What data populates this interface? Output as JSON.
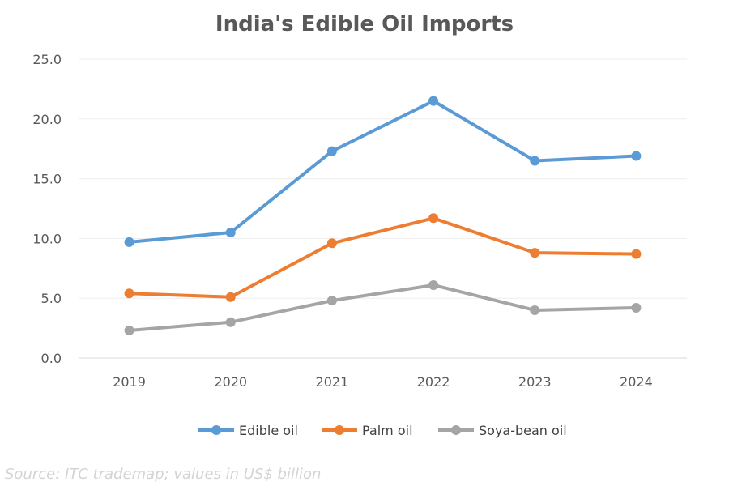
{
  "chart_data": {
    "type": "line",
    "title": "India's Edible Oil Imports",
    "xlabel": "",
    "ylabel": "",
    "categories": [
      "2019",
      "2020",
      "2021",
      "2022",
      "2023",
      "2024"
    ],
    "ylim": [
      0,
      25
    ],
    "yticks": [
      0,
      5,
      10,
      15,
      20,
      25
    ],
    "ytick_labels": [
      "0.0",
      "5.0",
      "10.0",
      "15.0",
      "20.0",
      "25.0"
    ],
    "grid": true,
    "legend_position": "bottom",
    "series": [
      {
        "name": "Edible oil",
        "color": "#5b9bd5",
        "values": [
          9.7,
          10.5,
          17.3,
          21.5,
          16.5,
          16.9
        ]
      },
      {
        "name": "Palm oil",
        "color": "#ed7d31",
        "values": [
          5.4,
          5.1,
          9.6,
          11.7,
          8.8,
          8.7
        ]
      },
      {
        "name": "Soya-bean oil",
        "color": "#a5a5a5",
        "values": [
          2.3,
          3.0,
          4.8,
          6.1,
          4.0,
          4.2
        ]
      }
    ]
  },
  "source_note": "Source: ITC trademap; values in US$ billion"
}
